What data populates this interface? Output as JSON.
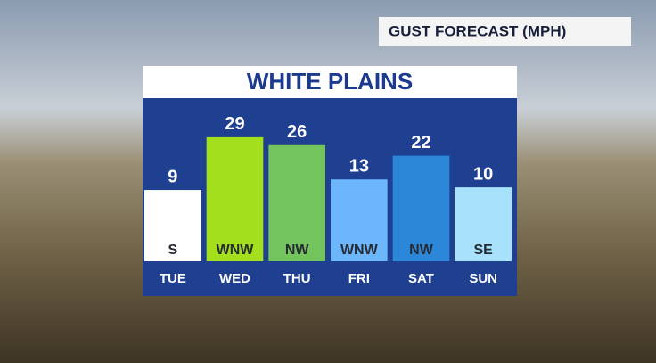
{
  "header": "GUST FORECAST (MPH)",
  "chart_data": {
    "type": "bar",
    "title": "WHITE PLAINS",
    "categories": [
      "TUE",
      "WED",
      "THU",
      "FRI",
      "SAT",
      "SUN"
    ],
    "values": [
      9,
      29,
      26,
      13,
      22,
      10
    ],
    "directions": [
      "S",
      "WNW",
      "NW",
      "WNW",
      "NW",
      "SE"
    ],
    "colors": [
      "#ffffff",
      "#a3df1c",
      "#73c45c",
      "#6cb6fb",
      "#2c87d9",
      "#a7e1fc"
    ],
    "ylim": [
      -18,
      32
    ]
  }
}
